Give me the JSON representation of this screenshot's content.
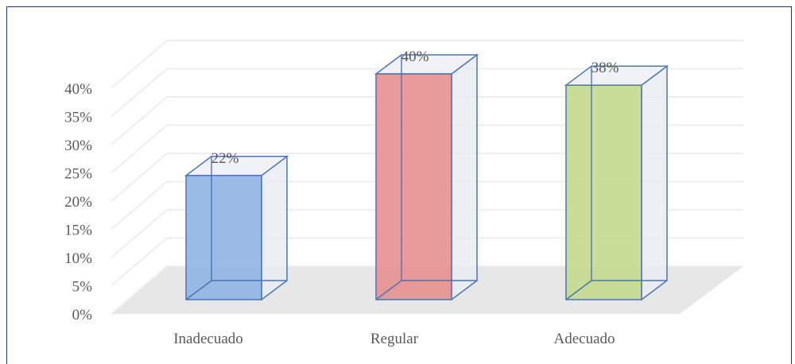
{
  "chart_data": {
    "type": "bar",
    "categories": [
      "Inadecuado",
      "Regular",
      "Adecuado"
    ],
    "values": [
      22,
      40,
      38
    ],
    "data_labels": [
      "22%",
      "40%",
      "38%"
    ],
    "yticks": [
      "0%",
      "5%",
      "10%",
      "15%",
      "20%",
      "25%",
      "30%",
      "35%",
      "40%"
    ],
    "ylim": [
      0,
      45
    ],
    "colors": [
      "#8eb4e3",
      "#e6908e",
      "#c3d98e"
    ],
    "edge_colors": [
      "#4f74b3",
      "#4f74b3",
      "#4f74b3"
    ],
    "grid": true,
    "style": "3d-column"
  }
}
